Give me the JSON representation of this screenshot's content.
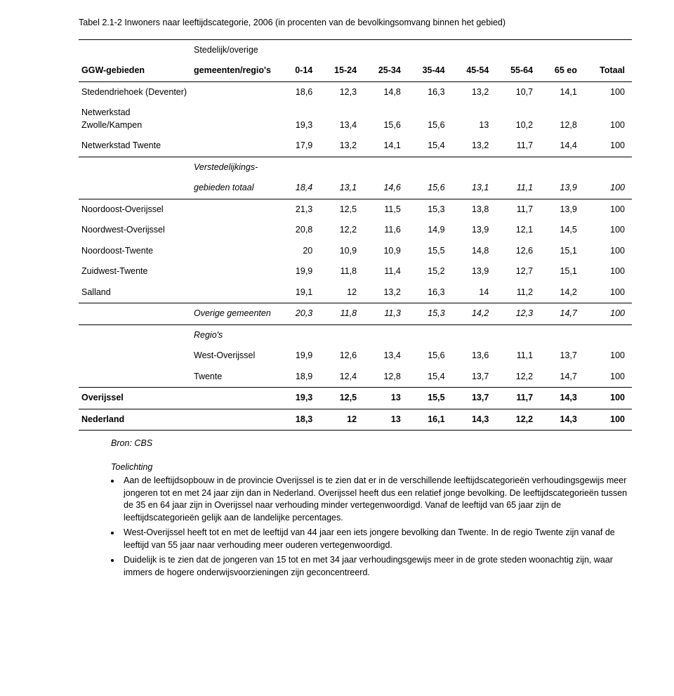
{
  "table": {
    "caption": "Tabel 2.1-2 Inwoners naar leeftijdscategorie, 2006 (in procenten van de bevolkingsomvang binnen het gebied)",
    "header": {
      "ggw": "GGW-gebieden",
      "sub_top": "Stedelijk/overige",
      "sub_bottom": "gemeenten/regio's",
      "cols": [
        "0-14",
        "15-24",
        "25-34",
        "35-44",
        "45-54",
        "55-64",
        "65 eo",
        "Totaal"
      ]
    },
    "rows": [
      {
        "ggw": "Stedendriehoek (Deventer)",
        "label": "",
        "vals": [
          "18,6",
          "12,3",
          "14,8",
          "16,3",
          "13,2",
          "10,7",
          "14,1",
          "100"
        ]
      },
      {
        "ggw": "Netwerkstad Zwolle/Kampen",
        "label": "",
        "vals": [
          "19,3",
          "13,4",
          "15,6",
          "15,6",
          "13",
          "10,2",
          "12,8",
          "100"
        ]
      },
      {
        "ggw": "Netwerkstad Twente",
        "label": "",
        "vals": [
          "17,9",
          "13,2",
          "14,1",
          "15,4",
          "13,2",
          "11,7",
          "14,4",
          "100"
        ]
      }
    ],
    "verst_block": {
      "label_top": "Verstedelijkings-",
      "label_bottom": "gebieden totaal",
      "vals": [
        "18,4",
        "13,1",
        "14,6",
        "15,6",
        "13,1",
        "11,1",
        "13,9",
        "100"
      ]
    },
    "rows2": [
      {
        "ggw": "Noordoost-Overijssel",
        "label": "",
        "vals": [
          "21,3",
          "12,5",
          "11,5",
          "15,3",
          "13,8",
          "11,7",
          "13,9",
          "100"
        ]
      },
      {
        "ggw": "Noordwest-Overijssel",
        "label": "",
        "vals": [
          "20,8",
          "12,2",
          "11,6",
          "14,9",
          "13,9",
          "12,1",
          "14,5",
          "100"
        ]
      },
      {
        "ggw": "Noordoost-Twente",
        "label": "",
        "vals": [
          "20",
          "10,9",
          "10,9",
          "15,5",
          "14,8",
          "12,6",
          "15,1",
          "100"
        ]
      },
      {
        "ggw": "Zuidwest-Twente",
        "label": "",
        "vals": [
          "19,9",
          "11,8",
          "11,4",
          "15,2",
          "13,9",
          "12,7",
          "15,1",
          "100"
        ]
      },
      {
        "ggw": "Salland",
        "label": "",
        "vals": [
          "19,1",
          "12",
          "13,2",
          "16,3",
          "14",
          "11,2",
          "14,2",
          "100"
        ]
      }
    ],
    "overige_block": {
      "label": "Overige gemeenten",
      "vals": [
        "20,3",
        "11,8",
        "11,3",
        "15,3",
        "14,2",
        "12,3",
        "14,7",
        "100"
      ]
    },
    "regios_header": "Regio's",
    "regio_rows": [
      {
        "ggw": "",
        "label": "West-Overijssel",
        "vals": [
          "19,9",
          "12,6",
          "13,4",
          "15,6",
          "13,6",
          "11,1",
          "13,7",
          "100"
        ]
      },
      {
        "ggw": "",
        "label": "Twente",
        "vals": [
          "18,9",
          "12,4",
          "12,8",
          "15,4",
          "13,7",
          "12,2",
          "14,7",
          "100"
        ]
      }
    ],
    "totals": [
      {
        "ggw": "Overijssel",
        "label": "",
        "vals": [
          "19,3",
          "12,5",
          "13",
          "15,5",
          "13,7",
          "11,7",
          "14,3",
          "100"
        ],
        "bold": true
      },
      {
        "ggw": "Nederland",
        "label": "",
        "vals": [
          "18,3",
          "12",
          "13",
          "16,1",
          "14,3",
          "12,2",
          "14,3",
          "100"
        ],
        "bold": true
      }
    ]
  },
  "source": "Bron: CBS",
  "toelichting_title": "Toelichting",
  "bullets": [
    "Aan de leeftijdsopbouw in de provincie Overijssel is te zien dat er in de verschillende leeftijdscategorieën verhoudingsgewijs meer jongeren tot en met 24 jaar zijn dan in Nederland. Overijssel heeft dus een relatief jonge bevolking. De leeftijdscategorieën tussen de 35 en 64 jaar zijn in Overijssel naar verhouding minder vertegenwoordigd. Vanaf de leeftijd van 65 jaar zijn de leeftijdscategorieën gelijk aan de landelijke percentages.",
    "West-Overijssel heeft tot en met de leeftijd van 44 jaar een iets jongere bevolking dan Twente. In de regio Twente zijn vanaf de leeftijd van 55 jaar naar verhouding meer ouderen vertegenwoordigd.",
    "Duidelijk is te zien dat de jongeren van 15 tot en met 34 jaar verhoudingsgewijs meer in de grote steden woonachtig zijn, waar immers de hogere onderwijsvoorzieningen zijn geconcentreerd."
  ]
}
